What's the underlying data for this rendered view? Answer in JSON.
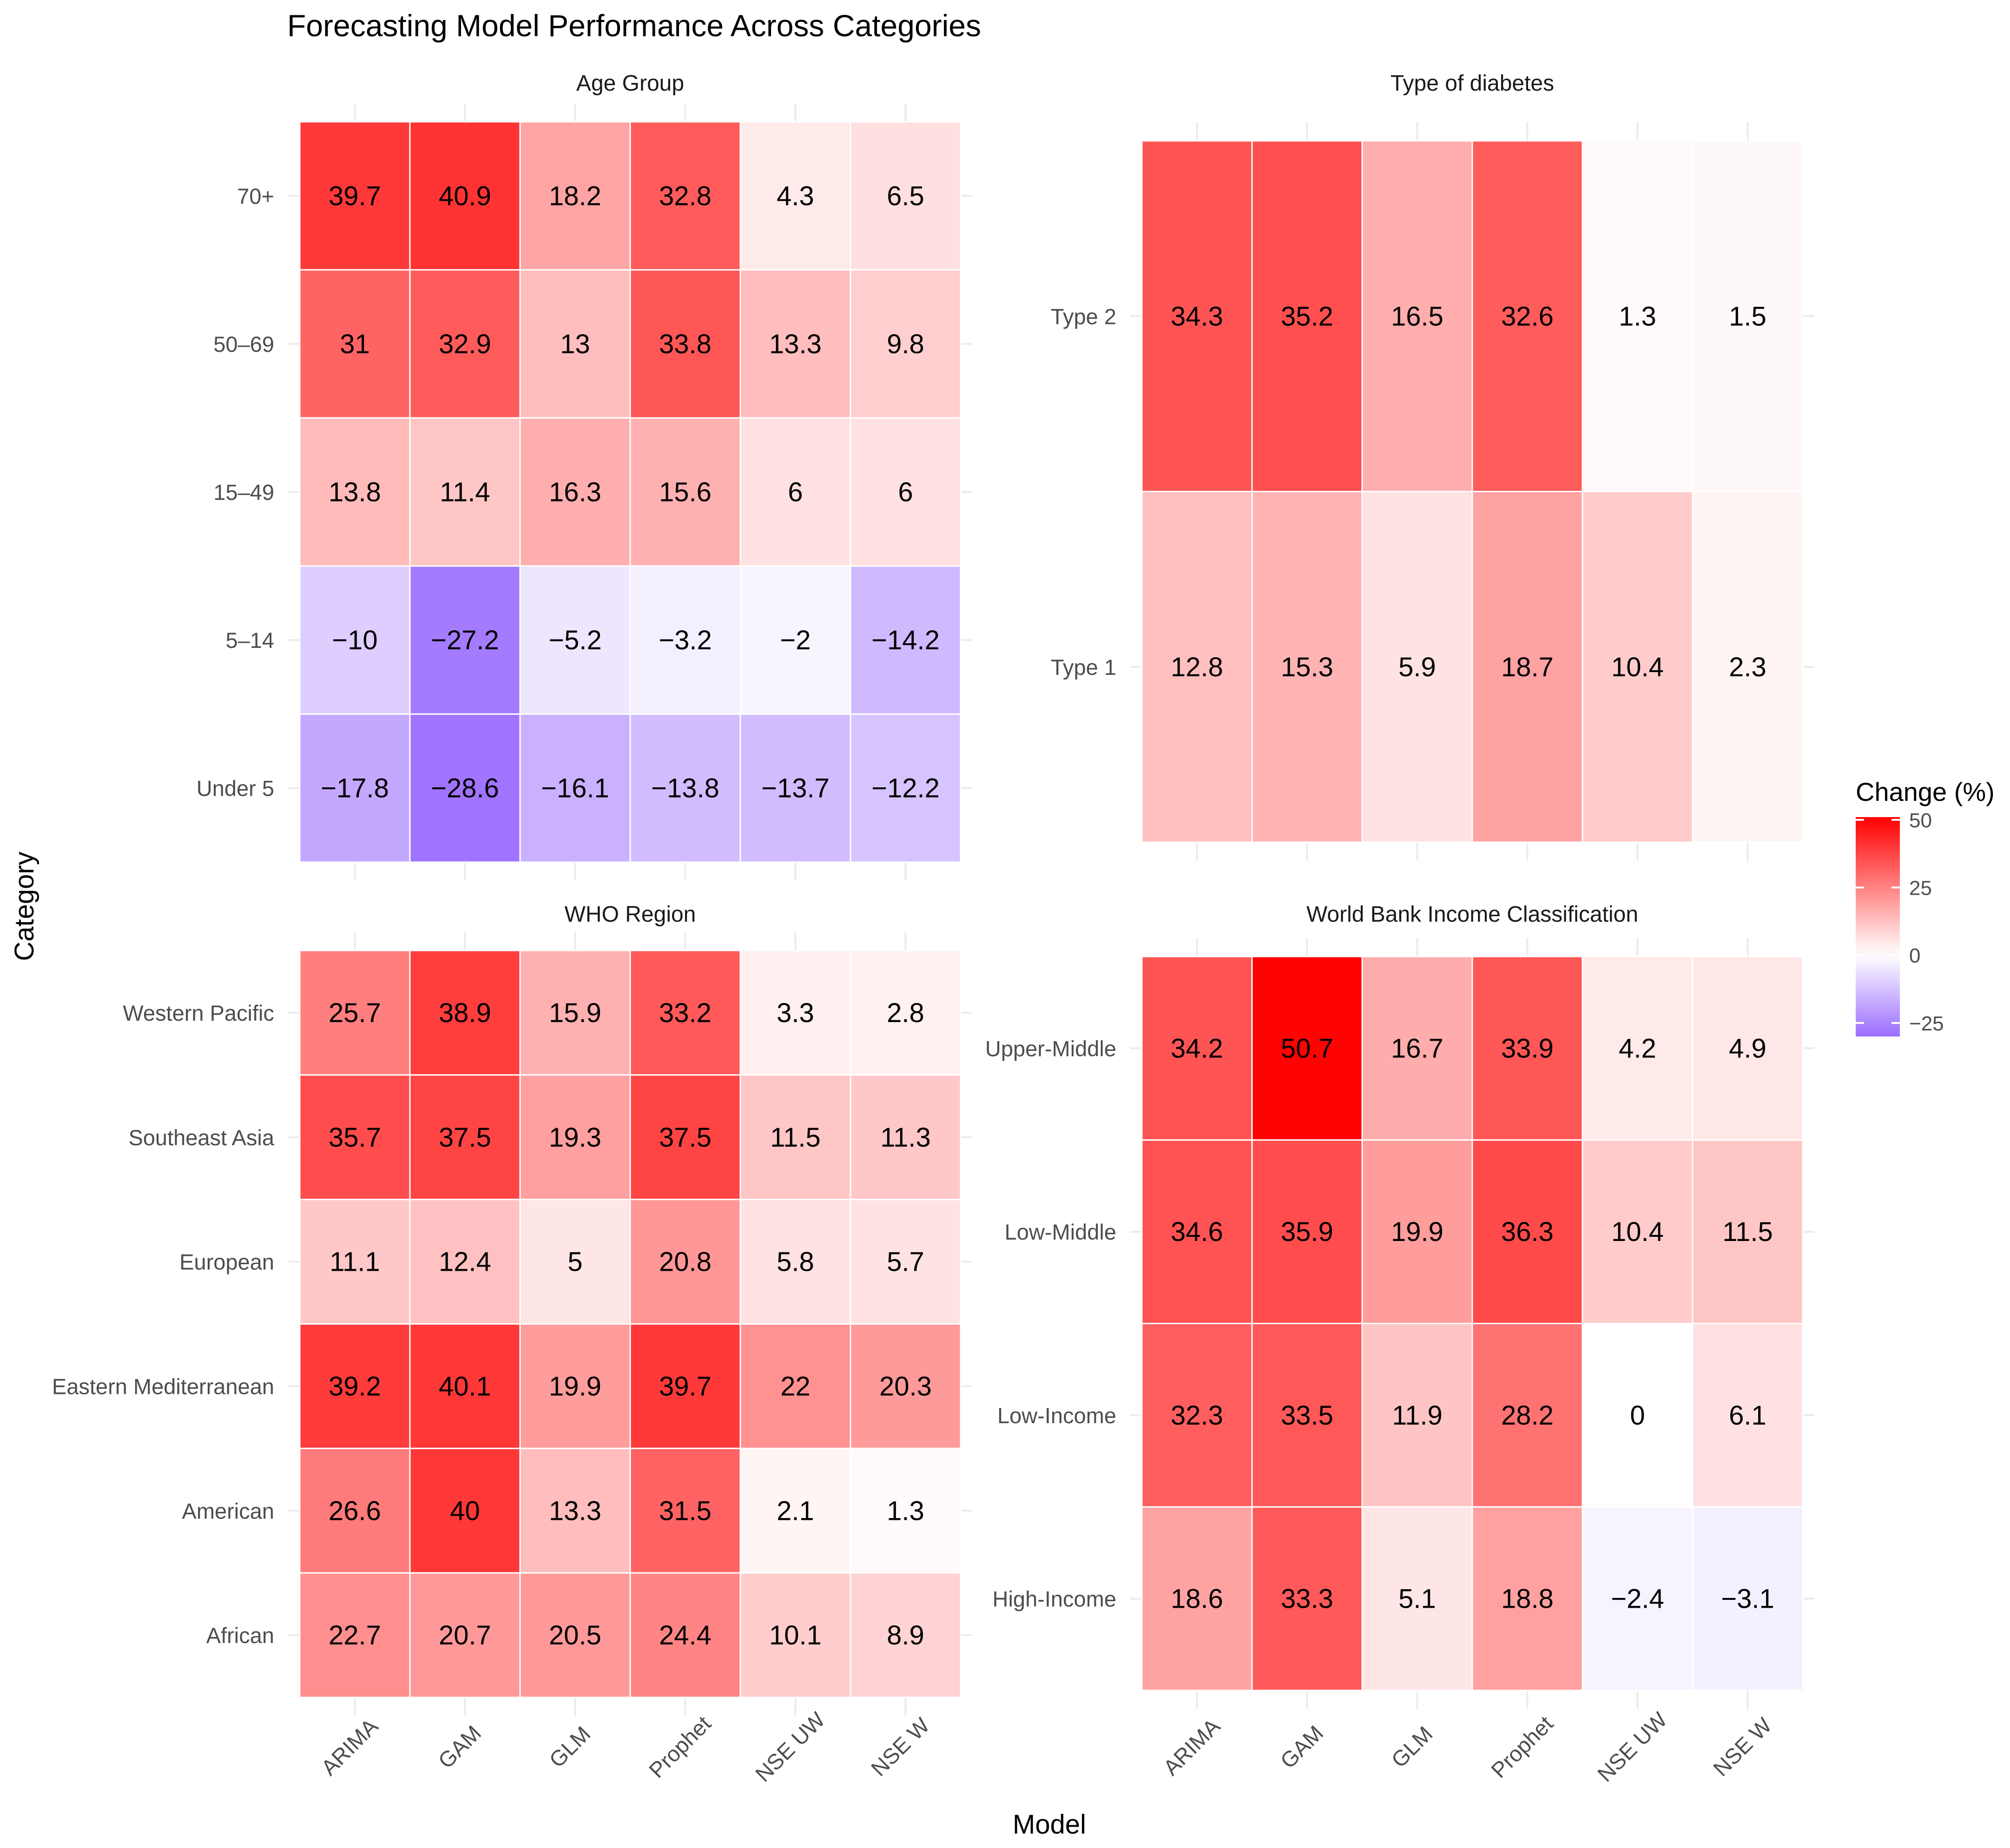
{
  "chart_data": {
    "type": "heatmap",
    "title": "Forecasting Model Performance Across Categories",
    "xlabel": "Model",
    "ylabel": "Category",
    "models": [
      "ARIMA",
      "GAM",
      "GLM",
      "Prophet",
      "NSE UW",
      "NSE W"
    ],
    "legend": {
      "title": "Change (%)",
      "position": "right",
      "range": [
        -30,
        51
      ],
      "breaks": [
        50,
        25,
        0,
        -25
      ],
      "low_color": "#9b6dff",
      "mid_color": "#ffffff",
      "high_color": "#ff0000",
      "midpoint": 0
    },
    "panels": [
      {
        "title": "Age Group",
        "categories": [
          "70+",
          "50–69",
          "15–49",
          "5–14",
          "Under 5"
        ],
        "values": [
          [
            39.7,
            40.9,
            18.2,
            32.8,
            4.3,
            6.5
          ],
          [
            31,
            32.9,
            13,
            33.8,
            13.3,
            9.8
          ],
          [
            13.8,
            11.4,
            16.3,
            15.6,
            6,
            6
          ],
          [
            -10,
            -27.2,
            -5.2,
            -3.2,
            -2,
            -14.2
          ],
          [
            -17.8,
            -28.6,
            -16.1,
            -13.8,
            -13.7,
            -12.2
          ]
        ]
      },
      {
        "title": "Type of diabetes",
        "categories": [
          "Type 2",
          "Type 1"
        ],
        "values": [
          [
            34.3,
            35.2,
            16.5,
            32.6,
            1.3,
            1.5
          ],
          [
            12.8,
            15.3,
            5.9,
            18.7,
            10.4,
            2.3
          ]
        ]
      },
      {
        "title": "WHO Region",
        "categories": [
          "Western Pacific",
          "Southeast Asia",
          "European",
          "Eastern Mediterranean",
          "American",
          "African"
        ],
        "values": [
          [
            25.7,
            38.9,
            15.9,
            33.2,
            3.3,
            2.8
          ],
          [
            35.7,
            37.5,
            19.3,
            37.5,
            11.5,
            11.3
          ],
          [
            11.1,
            12.4,
            5,
            20.8,
            5.8,
            5.7
          ],
          [
            39.2,
            40.1,
            19.9,
            39.7,
            22,
            20.3
          ],
          [
            26.6,
            40,
            13.3,
            31.5,
            2.1,
            1.3
          ],
          [
            22.7,
            20.7,
            20.5,
            24.4,
            10.1,
            8.9
          ]
        ]
      },
      {
        "title": "World Bank Income Classification",
        "categories": [
          "Upper-Middle",
          "Low-Middle",
          "Low-Income",
          "High-Income"
        ],
        "values": [
          [
            34.2,
            50.7,
            16.7,
            33.9,
            4.2,
            4.9
          ],
          [
            34.6,
            35.9,
            19.9,
            36.3,
            10.4,
            11.5
          ],
          [
            32.3,
            33.5,
            11.9,
            28.2,
            0,
            6.1
          ],
          [
            18.6,
            33.3,
            5.1,
            18.8,
            -2.4,
            -3.1
          ]
        ]
      }
    ]
  }
}
